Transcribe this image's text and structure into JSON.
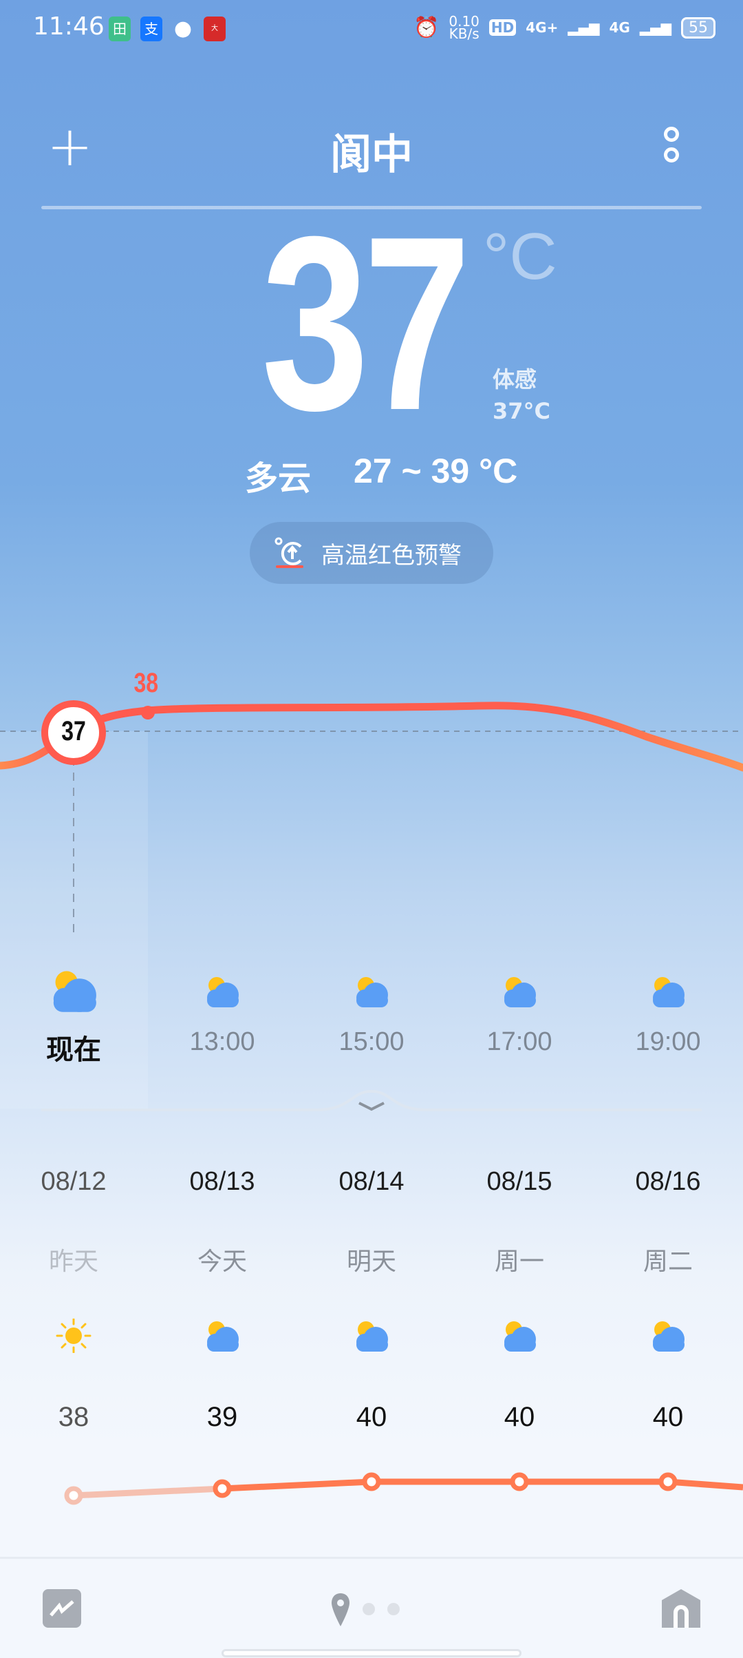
{
  "status_bar": {
    "time": "11:46",
    "net_speed": "0.10",
    "net_unit": "KB/s",
    "hd": "HD",
    "sim1": "4G+",
    "sim2": "4G",
    "battery": "55",
    "notif_icons": [
      "app-icon",
      "alipay-icon",
      "message-icon",
      "news-app-icon"
    ]
  },
  "header": {
    "city": "阆中",
    "add_icon": "plus-icon",
    "menu_icon": "more-icon"
  },
  "current": {
    "temp": "37",
    "unit": "°C",
    "feels_label": "体感",
    "feels_value": "37°C",
    "condition": "多云",
    "range": "27 ~ 39 °C",
    "alert": "高温红色预警"
  },
  "hourly": {
    "now_temp": "37",
    "peak_label": "38",
    "items": [
      {
        "label": "现在",
        "icon": "partly-cloudy"
      },
      {
        "label": "13:00",
        "icon": "partly-cloudy"
      },
      {
        "label": "15:00",
        "icon": "partly-cloudy"
      },
      {
        "label": "17:00",
        "icon": "partly-cloudy"
      },
      {
        "label": "19:00",
        "icon": "partly-cloudy"
      }
    ]
  },
  "daily": {
    "items": [
      {
        "date": "08/12",
        "weekday": "昨天",
        "icon": "sunny",
        "high": "38"
      },
      {
        "date": "08/13",
        "weekday": "今天",
        "icon": "partly-cloudy",
        "high": "39"
      },
      {
        "date": "08/14",
        "weekday": "明天",
        "icon": "partly-cloudy",
        "high": "40"
      },
      {
        "date": "08/15",
        "weekday": "周一",
        "icon": "partly-cloudy",
        "high": "40"
      },
      {
        "date": "08/16",
        "weekday": "周二",
        "icon": "partly-cloudy",
        "high": "40"
      }
    ]
  },
  "colors": {
    "accent": "#ff5a4e",
    "line_orange": "#ff7a50",
    "sky": "#6fa1e2"
  },
  "bottom_nav": {
    "left_icon": "trend-icon",
    "center_icon": "location-pin-icon",
    "pages": 3,
    "right_icon": "home-icon"
  }
}
